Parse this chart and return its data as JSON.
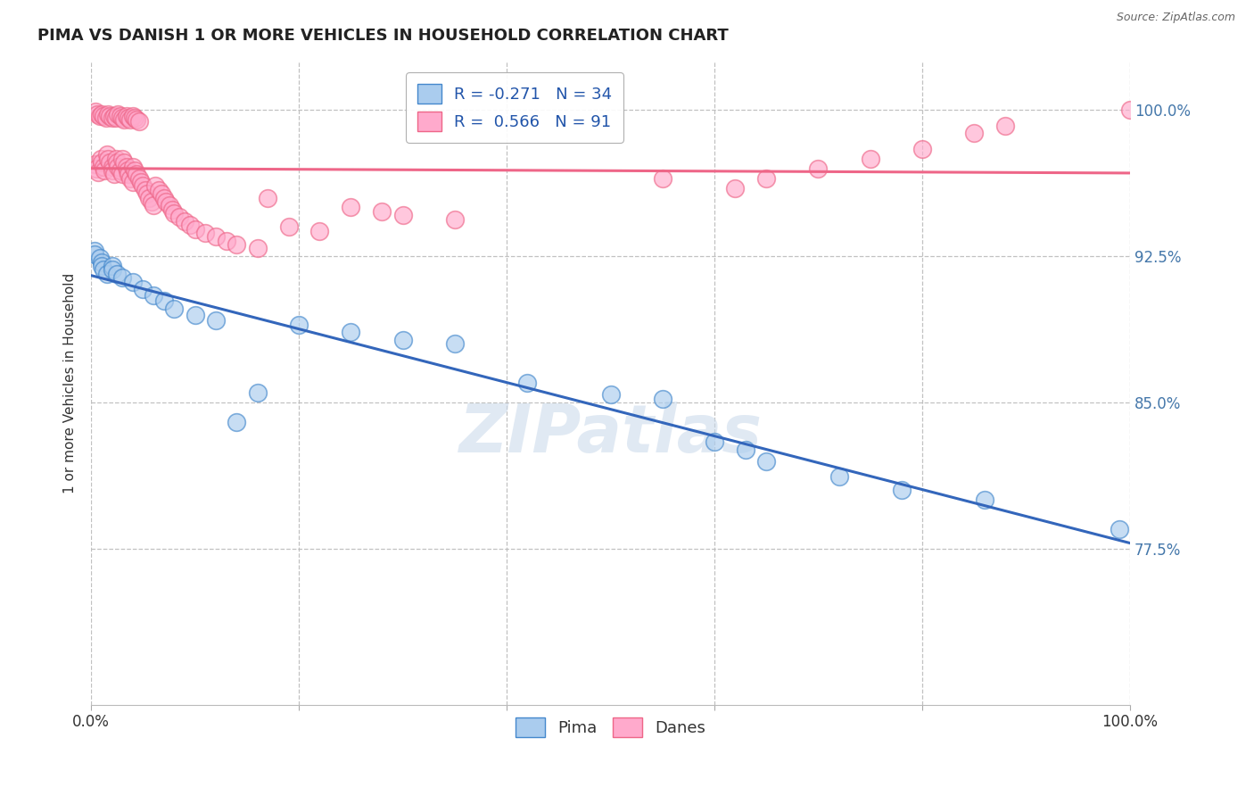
{
  "title": "PIMA VS DANISH 1 OR MORE VEHICLES IN HOUSEHOLD CORRELATION CHART",
  "source_text": "Source: ZipAtlas.com",
  "ylabel": "1 or more Vehicles in Household",
  "xlim": [
    0.0,
    1.0
  ],
  "ylim": [
    0.695,
    1.025
  ],
  "ytick_labels": [
    "77.5%",
    "85.0%",
    "92.5%",
    "100.0%"
  ],
  "ytick_values": [
    0.775,
    0.85,
    0.925,
    1.0
  ],
  "xtick_labels": [
    "0.0%",
    "",
    "",
    "",
    "",
    "100.0%"
  ],
  "xtick_values": [
    0.0,
    0.2,
    0.4,
    0.6,
    0.8,
    1.0
  ],
  "legend_pima_label": "Pima",
  "legend_danes_label": "Danes",
  "legend_line1": "R = -0.271   N = 34",
  "legend_line2": "R =  0.566   N = 91",
  "pima_color": "#aaccee",
  "danes_color": "#ffaacc",
  "pima_edge_color": "#4488cc",
  "danes_edge_color": "#ee6688",
  "pima_line_color": "#3366bb",
  "danes_line_color": "#ee6688",
  "background_color": "#ffffff",
  "watermark_text": "ZIPatlas",
  "pima_x": [
    0.003,
    0.003,
    0.008,
    0.01,
    0.01,
    0.012,
    0.015,
    0.02,
    0.02,
    0.025,
    0.03,
    0.04,
    0.05,
    0.06,
    0.07,
    0.08,
    0.1,
    0.12,
    0.14,
    0.16,
    0.2,
    0.25,
    0.3,
    0.35,
    0.42,
    0.5,
    0.55,
    0.6,
    0.63,
    0.65,
    0.72,
    0.78,
    0.86,
    0.99
  ],
  "pima_y": [
    0.928,
    0.926,
    0.924,
    0.922,
    0.92,
    0.918,
    0.916,
    0.92,
    0.918,
    0.916,
    0.914,
    0.912,
    0.908,
    0.905,
    0.902,
    0.898,
    0.895,
    0.892,
    0.84,
    0.855,
    0.89,
    0.886,
    0.882,
    0.88,
    0.86,
    0.854,
    0.852,
    0.83,
    0.826,
    0.82,
    0.812,
    0.805,
    0.8,
    0.785
  ],
  "danes_x": [
    0.003,
    0.005,
    0.007,
    0.009,
    0.01,
    0.012,
    0.013,
    0.015,
    0.016,
    0.018,
    0.02,
    0.02,
    0.022,
    0.024,
    0.025,
    0.026,
    0.028,
    0.03,
    0.03,
    0.032,
    0.034,
    0.035,
    0.036,
    0.038,
    0.04,
    0.04,
    0.042,
    0.044,
    0.046,
    0.048,
    0.05,
    0.052,
    0.054,
    0.056,
    0.058,
    0.06,
    0.062,
    0.065,
    0.068,
    0.07,
    0.072,
    0.075,
    0.078,
    0.08,
    0.085,
    0.09,
    0.095,
    0.1,
    0.11,
    0.12,
    0.13,
    0.14,
    0.16,
    0.17,
    0.19,
    0.22,
    0.25,
    0.28,
    0.3,
    0.35,
    0.004,
    0.006,
    0.008,
    0.01,
    0.012,
    0.014,
    0.016,
    0.018,
    0.02,
    0.022,
    0.024,
    0.026,
    0.028,
    0.03,
    0.032,
    0.034,
    0.036,
    0.038,
    0.04,
    0.042,
    0.044,
    0.046,
    0.55,
    0.62,
    0.65,
    0.7,
    0.75,
    0.8,
    0.85,
    0.88,
    1.0
  ],
  "danes_y": [
    0.972,
    0.97,
    0.968,
    0.975,
    0.973,
    0.971,
    0.969,
    0.977,
    0.975,
    0.973,
    0.971,
    0.969,
    0.967,
    0.975,
    0.973,
    0.971,
    0.969,
    0.967,
    0.975,
    0.973,
    0.971,
    0.969,
    0.967,
    0.965,
    0.963,
    0.971,
    0.969,
    0.967,
    0.965,
    0.963,
    0.961,
    0.959,
    0.957,
    0.955,
    0.953,
    0.951,
    0.961,
    0.959,
    0.957,
    0.955,
    0.953,
    0.951,
    0.949,
    0.947,
    0.945,
    0.943,
    0.941,
    0.939,
    0.937,
    0.935,
    0.933,
    0.931,
    0.929,
    0.955,
    0.94,
    0.938,
    0.95,
    0.948,
    0.946,
    0.944,
    0.999,
    0.998,
    0.997,
    0.998,
    0.997,
    0.996,
    0.998,
    0.997,
    0.996,
    0.997,
    0.996,
    0.998,
    0.997,
    0.996,
    0.995,
    0.997,
    0.996,
    0.995,
    0.997,
    0.996,
    0.995,
    0.994,
    0.965,
    0.96,
    0.965,
    0.97,
    0.975,
    0.98,
    0.988,
    0.992,
    1.0
  ]
}
